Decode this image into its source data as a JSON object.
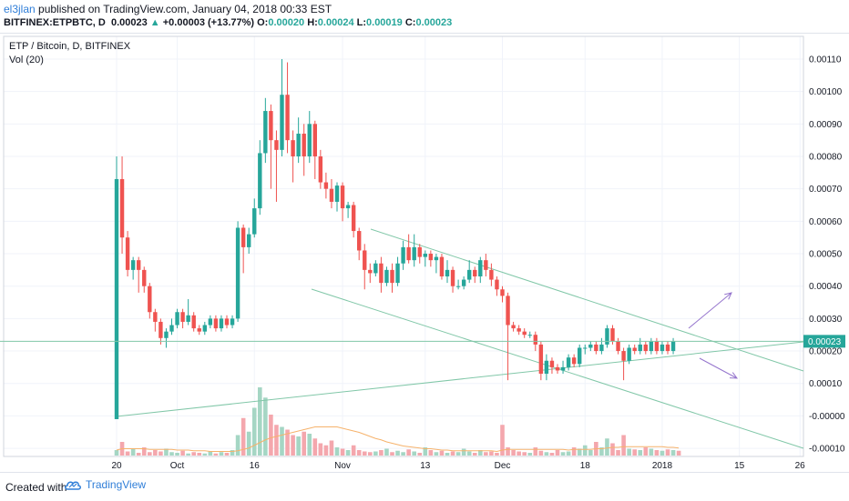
{
  "publish": {
    "user": "el3jlan",
    "text": " published on TradingView.com, January 04, 2018 00:33 EST"
  },
  "ticker": {
    "symbol": "BITFINEX:ETPBTC, D",
    "price": "0.00023",
    "change": "+0.00003 (+13.77%)",
    "o_label": "O:",
    "o": "0.00020",
    "h_label": "H:",
    "h": "0.00024",
    "l_label": "L:",
    "l": "0.00019",
    "c_label": "C:",
    "c": "0.00023"
  },
  "legend": {
    "title": "ETP / Bitcoin, D, BITFINEX",
    "vol": "Vol (20)"
  },
  "footer": {
    "created": "Created with",
    "brand": "TradingView"
  },
  "colors": {
    "up": "#26a69a",
    "down": "#ef5350",
    "up_vol": "#a5d6c4",
    "down_vol": "#f4a7ad",
    "trendline": "#81c7a8",
    "arrow": "#9575cd",
    "vol_ma": "#f6b26b",
    "price_label_bg": "#26a69a"
  },
  "chart_data": {
    "type": "candlestick",
    "title": "ETP / Bitcoin, D, BITFINEX",
    "y_tick_labels": [
      "0.00110",
      "0.00100",
      "0.00090",
      "0.00080",
      "0.00070",
      "0.00060",
      "0.00050",
      "0.00040",
      "0.00030",
      "0.00020",
      "0.00010",
      "-0.00000",
      "-0.00010"
    ],
    "x_tick_labels": [
      "20",
      "Oct",
      "16",
      "Nov",
      "13",
      "Dec",
      "18",
      "2018",
      "15",
      "26"
    ],
    "ylim": [
      -0.000125,
      0.00117
    ],
    "last_price": "0.00023",
    "grid": true,
    "candles": [
      [
        -1e-05,
        0.00073,
        0.0008,
        -1e-05
      ],
      [
        0.00073,
        0.00055,
        0.0008,
        0.0005
      ],
      [
        0.00055,
        0.00045,
        0.00057,
        0.00043
      ],
      [
        0.00045,
        0.00048,
        0.00049,
        0.00042
      ],
      [
        0.00048,
        0.00045,
        0.00049,
        0.00038
      ],
      [
        0.00045,
        0.0004,
        0.00046,
        0.00038
      ],
      [
        0.0004,
        0.00032,
        0.00041,
        0.0003
      ],
      [
        0.00032,
        0.00029,
        0.00033,
        0.00026
      ],
      [
        0.00029,
        0.00024,
        0.0003,
        0.00022
      ],
      [
        0.00024,
        0.00026,
        0.00027,
        0.00021
      ],
      [
        0.00026,
        0.00028,
        0.0003,
        0.00025
      ],
      [
        0.00028,
        0.00032,
        0.00033,
        0.00027
      ],
      [
        0.00032,
        0.00029,
        0.00033,
        0.00027
      ],
      [
        0.00029,
        0.00031,
        0.00036,
        0.00028
      ],
      [
        0.00031,
        0.00027,
        0.00032,
        0.00026
      ],
      [
        0.00027,
        0.00026,
        0.00028,
        0.00025
      ],
      [
        0.00026,
        0.00028,
        0.00029,
        0.00025
      ],
      [
        0.00028,
        0.0003,
        0.00031,
        0.00027
      ],
      [
        0.0003,
        0.00027,
        0.00031,
        0.00026
      ],
      [
        0.00027,
        0.0003,
        0.00031,
        0.00026
      ],
      [
        0.0003,
        0.00028,
        0.00031,
        0.00027
      ],
      [
        0.00028,
        0.0003,
        0.00031,
        0.00027
      ],
      [
        0.0003,
        0.00058,
        0.0006,
        0.00029
      ],
      [
        0.00058,
        0.00052,
        0.00059,
        0.00044
      ],
      [
        0.00052,
        0.00056,
        0.00058,
        0.0005
      ],
      [
        0.00056,
        0.00064,
        0.00067,
        0.00055
      ],
      [
        0.00064,
        0.00081,
        0.00085,
        0.00062
      ],
      [
        0.00081,
        0.00094,
        0.00098,
        0.00078
      ],
      [
        0.00094,
        0.00085,
        0.00096,
        0.0007
      ],
      [
        0.00085,
        0.00082,
        0.00088,
        0.00066
      ],
      [
        0.00082,
        0.00099,
        0.0011,
        0.0008
      ],
      [
        0.00099,
        0.00085,
        0.00109,
        0.00081
      ],
      [
        0.00085,
        0.0008,
        0.00088,
        0.00072
      ],
      [
        0.0008,
        0.00087,
        0.00092,
        0.00078
      ],
      [
        0.00087,
        0.0008,
        0.0009,
        0.00074
      ],
      [
        0.0008,
        0.0009,
        0.00094,
        0.00078
      ],
      [
        0.0009,
        0.0008,
        0.00091,
        0.00073
      ],
      [
        0.0008,
        0.00072,
        0.00082,
        0.0007
      ],
      [
        0.00072,
        0.0007,
        0.00075,
        0.00067
      ],
      [
        0.0007,
        0.00066,
        0.00073,
        0.00064
      ],
      [
        0.00066,
        0.00071,
        0.00072,
        0.00063
      ],
      [
        0.00071,
        0.00064,
        0.00072,
        0.0006
      ],
      [
        0.00064,
        0.00065,
        0.00066,
        0.00061
      ],
      [
        0.00065,
        0.00057,
        0.00066,
        0.00055
      ],
      [
        0.00057,
        0.00051,
        0.00058,
        0.00048
      ],
      [
        0.00051,
        0.00045,
        0.00053,
        0.00039
      ],
      [
        0.00045,
        0.00044,
        0.00047,
        0.00041
      ],
      [
        0.00044,
        0.00047,
        0.00048,
        0.00043
      ],
      [
        0.00047,
        0.00041,
        0.00049,
        0.00038
      ],
      [
        0.00041,
        0.00045,
        0.00046,
        0.0004
      ],
      [
        0.00045,
        0.00041,
        0.00047,
        0.00038
      ],
      [
        0.00041,
        0.00047,
        0.00049,
        0.0004
      ],
      [
        0.00047,
        0.00052,
        0.00054,
        0.00045
      ],
      [
        0.00052,
        0.00048,
        0.00056,
        0.00047
      ],
      [
        0.00048,
        0.00052,
        0.00056,
        0.00046
      ],
      [
        0.00052,
        0.00049,
        0.00053,
        0.00047
      ],
      [
        0.00049,
        0.0005,
        0.00051,
        0.00046
      ],
      [
        0.0005,
        0.00048,
        0.00051,
        0.00046
      ],
      [
        0.00048,
        0.00049,
        0.0005,
        0.00044
      ],
      [
        0.00049,
        0.00043,
        0.0005,
        0.00042
      ],
      [
        0.00043,
        0.00045,
        0.00048,
        0.00041
      ],
      [
        0.00045,
        0.0004,
        0.00046,
        0.00038
      ],
      [
        0.0004,
        0.0004,
        0.00042,
        0.00039
      ],
      [
        0.0004,
        0.00042,
        0.00043,
        0.00039
      ],
      [
        0.00042,
        0.00045,
        0.00048,
        0.00041
      ],
      [
        0.00045,
        0.00043,
        0.00046,
        0.00041
      ],
      [
        0.00043,
        0.00048,
        0.00049,
        0.00041
      ],
      [
        0.00048,
        0.00045,
        0.0005,
        0.00043
      ],
      [
        0.00045,
        0.00042,
        0.00047,
        0.0004
      ],
      [
        0.00042,
        0.00039,
        0.00043,
        0.00037
      ],
      [
        0.00039,
        0.00037,
        0.0004,
        0.00035
      ],
      [
        0.00037,
        0.00028,
        0.00038,
        0.00011
      ],
      [
        0.00028,
        0.00027,
        0.00029,
        0.00026
      ],
      [
        0.00027,
        0.00026,
        0.00028,
        0.00025
      ],
      [
        0.00026,
        0.00025,
        0.00027,
        0.00024
      ],
      [
        0.00025,
        0.00025,
        0.00026,
        0.00024
      ],
      [
        0.00025,
        0.00022,
        0.00026,
        0.0002
      ],
      [
        0.00022,
        0.00013,
        0.00023,
        0.00011
      ],
      [
        0.00013,
        0.00017,
        0.00019,
        0.00011
      ],
      [
        0.00017,
        0.00015,
        0.00018,
        0.00013
      ],
      [
        0.00015,
        0.00014,
        0.00016,
        0.00013
      ],
      [
        0.00014,
        0.00015,
        0.00017,
        0.00013
      ],
      [
        0.00015,
        0.00018,
        0.00019,
        0.00014
      ],
      [
        0.00018,
        0.00016,
        0.00019,
        0.00015
      ],
      [
        0.00016,
        0.00021,
        0.00022,
        0.00015
      ],
      [
        0.00021,
        0.00021,
        0.00022,
        0.00019
      ],
      [
        0.00021,
        0.00022,
        0.00023,
        0.0002
      ],
      [
        0.00022,
        0.0002,
        0.00023,
        0.00019
      ],
      [
        0.0002,
        0.00022,
        0.00024,
        0.00019
      ],
      [
        0.00022,
        0.00027,
        0.00028,
        0.00021
      ],
      [
        0.00027,
        0.00023,
        0.00028,
        0.00022
      ],
      [
        0.00023,
        0.0002,
        0.00024,
        0.00019
      ],
      [
        0.0002,
        0.00017,
        0.00021,
        0.00011
      ],
      [
        0.00017,
        0.00021,
        0.00022,
        0.00016
      ],
      [
        0.00021,
        0.0002,
        0.00022,
        0.00019
      ],
      [
        0.0002,
        0.00022,
        0.00024,
        0.00019
      ],
      [
        0.00022,
        0.0002,
        0.00023,
        0.00019
      ],
      [
        0.0002,
        0.00023,
        0.00024,
        0.00019
      ],
      [
        0.00023,
        0.0002,
        0.00024,
        0.00019
      ],
      [
        0.0002,
        0.00022,
        0.00023,
        0.00019
      ],
      [
        0.00022,
        0.0002,
        0.00023,
        0.00019
      ],
      [
        0.0002,
        0.00023,
        0.00024,
        0.00019
      ]
    ],
    "volume": [
      8,
      20,
      6,
      10,
      4,
      12,
      5,
      8,
      6,
      10,
      5,
      4,
      7,
      3,
      5,
      4,
      3,
      6,
      3,
      5,
      4,
      8,
      30,
      55,
      35,
      70,
      100,
      85,
      60,
      45,
      42,
      38,
      30,
      28,
      35,
      32,
      25,
      18,
      15,
      22,
      12,
      10,
      8,
      15,
      8,
      6,
      5,
      6,
      8,
      10,
      5,
      7,
      5,
      9,
      6,
      4,
      12,
      8,
      5,
      7,
      4,
      6,
      5,
      10,
      6,
      4,
      8,
      5,
      6,
      4,
      45,
      12,
      8,
      6,
      5,
      4,
      12,
      7,
      5,
      4,
      8,
      5,
      6,
      12,
      10,
      15,
      8,
      20,
      12,
      25,
      18,
      8,
      30,
      10,
      9,
      8,
      12,
      10,
      8,
      7,
      9,
      8,
      7
    ],
    "vol_ma": [
      8,
      10,
      10,
      10,
      10,
      10,
      9,
      9,
      9,
      9,
      9,
      8,
      8,
      8,
      7,
      7,
      7,
      6,
      6,
      6,
      6,
      6,
      7,
      9,
      11,
      15,
      19,
      23,
      26,
      28,
      30,
      32,
      34,
      36,
      38,
      40,
      42,
      42,
      42,
      42,
      42,
      40,
      38,
      36,
      34,
      31,
      28,
      25,
      23,
      20,
      18,
      16,
      14,
      13,
      12,
      11,
      10,
      10,
      9,
      8,
      8,
      7,
      7,
      7,
      7,
      7,
      7,
      7,
      7,
      6,
      8,
      9,
      9,
      9,
      9,
      9,
      9,
      9,
      9,
      9,
      9,
      9,
      8,
      9,
      9,
      9,
      9,
      10,
      10,
      11,
      12,
      12,
      13,
      13,
      13,
      13,
      13,
      13,
      13,
      13,
      12,
      12,
      11
    ]
  }
}
